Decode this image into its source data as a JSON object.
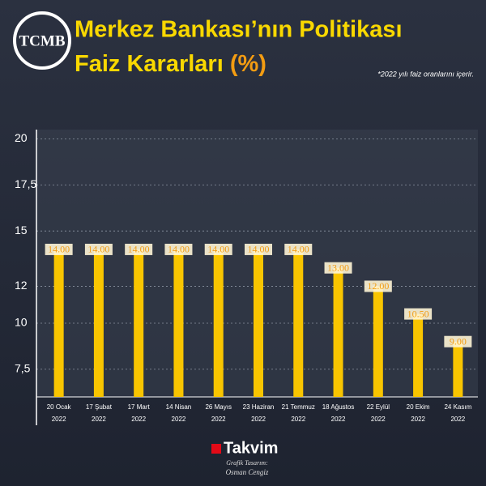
{
  "logo": "TCMB",
  "chart_data": {
    "type": "bar",
    "title": [
      "Merkez Bankası’nın Politikası",
      "Faiz Kararları"
    ],
    "title_unit": "(%)",
    "note": "*2022 yılı faiz oranlarını içerir.",
    "categories": [
      "20 Ocak",
      "17 Şubat",
      "17 Mart",
      "14 Nisan",
      "26 Mayıs",
      "23 Haziran",
      "21 Temmuz",
      "18 Ağustos",
      "22 Eylül",
      "20 Ekim",
      "24 Kasım"
    ],
    "category_years": [
      "2022",
      "2022",
      "2022",
      "2022",
      "2022",
      "2022",
      "2022",
      "2022",
      "2022",
      "2022",
      "2022"
    ],
    "values": [
      14,
      14,
      14,
      14,
      14,
      14,
      14,
      13,
      12,
      10.5,
      9
    ],
    "value_labels": [
      "14.00",
      "14.00",
      "14.00",
      "14.00",
      "14.00",
      "14.00",
      "14.00",
      "13.00",
      "12.00",
      "10.50",
      "9.00"
    ],
    "color": "#f9c500",
    "ylim": [
      6,
      20.5
    ],
    "yticks": [
      20,
      {
        "value": 17.5,
        "label": "17,5"
      },
      15,
      12,
      10,
      {
        "value": 7.5,
        "label": "7,5"
      }
    ],
    "grid": true
  },
  "footer": {
    "brand": "Takvim",
    "credit": "Grafik Tasarım:",
    "designer": "Osman Cengiz"
  }
}
